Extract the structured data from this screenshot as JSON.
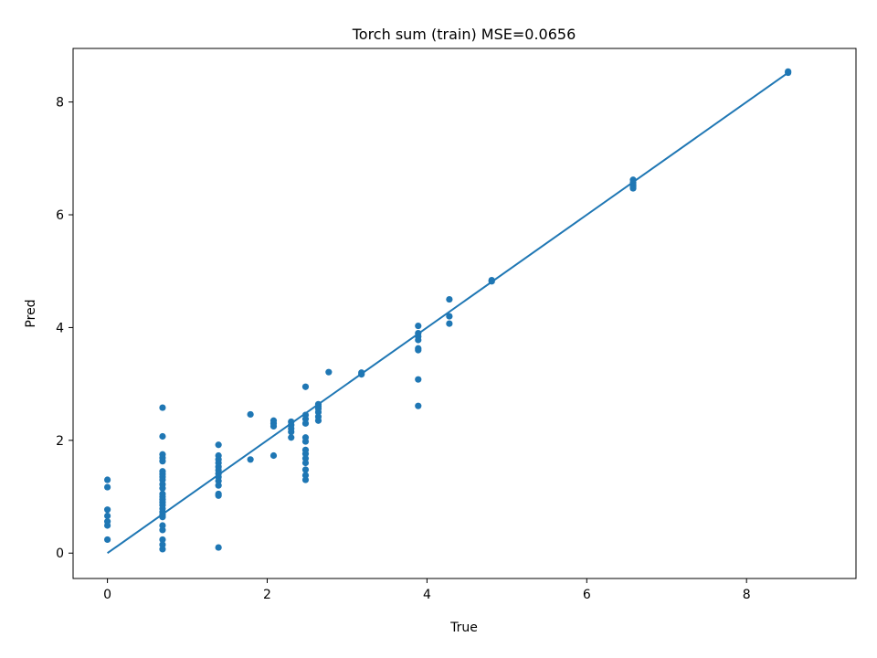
{
  "chart_data": {
    "type": "scatter",
    "title": "Torch sum (train) MSE=0.0656",
    "xlabel": "True",
    "ylabel": "Pred",
    "xlim": [
      -0.43,
      9.37
    ],
    "ylim": [
      -0.45,
      8.95
    ],
    "xticks": [
      0,
      2,
      4,
      6,
      8
    ],
    "yticks": [
      0,
      2,
      4,
      6,
      8
    ],
    "grid": false,
    "colors": {
      "series": "#1f77b4"
    },
    "series": [
      {
        "type": "scatter",
        "points": [
          [
            0,
            1.3
          ],
          [
            0,
            1.17
          ],
          [
            0,
            0.77
          ],
          [
            0,
            0.66
          ],
          [
            0,
            0.56
          ],
          [
            0,
            0.49
          ],
          [
            0,
            0.24
          ],
          [
            0.69,
            2.58
          ],
          [
            0.69,
            2.07
          ],
          [
            0.69,
            1.75
          ],
          [
            0.69,
            1.69
          ],
          [
            0.69,
            1.63
          ],
          [
            0.69,
            1.45
          ],
          [
            0.69,
            1.4
          ],
          [
            0.69,
            1.35
          ],
          [
            0.69,
            1.3
          ],
          [
            0.69,
            1.22
          ],
          [
            0.69,
            1.15
          ],
          [
            0.69,
            1.05
          ],
          [
            0.69,
            1.0
          ],
          [
            0.69,
            0.95
          ],
          [
            0.69,
            0.9
          ],
          [
            0.69,
            0.85
          ],
          [
            0.69,
            0.79
          ],
          [
            0.69,
            0.73
          ],
          [
            0.69,
            0.68
          ],
          [
            0.69,
            0.64
          ],
          [
            0.69,
            0.49
          ],
          [
            0.69,
            0.41
          ],
          [
            0.69,
            0.24
          ],
          [
            0.69,
            0.15
          ],
          [
            0.69,
            0.07
          ],
          [
            1.39,
            1.92
          ],
          [
            1.39,
            1.73
          ],
          [
            1.39,
            1.66
          ],
          [
            1.39,
            1.6
          ],
          [
            1.39,
            1.53
          ],
          [
            1.39,
            1.47
          ],
          [
            1.39,
            1.41
          ],
          [
            1.39,
            1.35
          ],
          [
            1.39,
            1.28
          ],
          [
            1.39,
            1.2
          ],
          [
            1.39,
            1.05
          ],
          [
            1.39,
            1.02
          ],
          [
            1.39,
            0.1
          ],
          [
            1.79,
            2.46
          ],
          [
            1.79,
            1.66
          ],
          [
            2.08,
            2.35
          ],
          [
            2.08,
            2.3
          ],
          [
            2.08,
            2.25
          ],
          [
            2.08,
            1.73
          ],
          [
            2.3,
            2.33
          ],
          [
            2.3,
            2.27
          ],
          [
            2.3,
            2.21
          ],
          [
            2.3,
            2.15
          ],
          [
            2.3,
            2.05
          ],
          [
            2.48,
            2.95
          ],
          [
            2.48,
            2.45
          ],
          [
            2.48,
            2.38
          ],
          [
            2.48,
            2.3
          ],
          [
            2.48,
            2.05
          ],
          [
            2.48,
            1.98
          ],
          [
            2.48,
            1.83
          ],
          [
            2.48,
            1.76
          ],
          [
            2.48,
            1.68
          ],
          [
            2.48,
            1.6
          ],
          [
            2.48,
            1.48
          ],
          [
            2.48,
            1.38
          ],
          [
            2.48,
            1.3
          ],
          [
            2.64,
            2.64
          ],
          [
            2.64,
            2.6
          ],
          [
            2.64,
            2.56
          ],
          [
            2.64,
            2.5
          ],
          [
            2.64,
            2.42
          ],
          [
            2.64,
            2.35
          ],
          [
            2.77,
            3.21
          ],
          [
            3.18,
            3.2
          ],
          [
            3.18,
            3.17
          ],
          [
            3.89,
            4.03
          ],
          [
            3.89,
            3.9
          ],
          [
            3.89,
            3.84
          ],
          [
            3.89,
            3.78
          ],
          [
            3.89,
            3.63
          ],
          [
            3.89,
            3.6
          ],
          [
            3.89,
            3.08
          ],
          [
            3.89,
            2.61
          ],
          [
            4.28,
            4.5
          ],
          [
            4.28,
            4.2
          ],
          [
            4.28,
            4.07
          ],
          [
            4.81,
            4.84
          ],
          [
            4.81,
            4.82
          ],
          [
            6.58,
            6.62
          ],
          [
            6.58,
            6.57
          ],
          [
            6.58,
            6.53
          ],
          [
            6.58,
            6.5
          ],
          [
            6.58,
            6.47
          ],
          [
            8.52,
            8.54
          ],
          [
            8.52,
            8.52
          ]
        ]
      },
      {
        "type": "line",
        "points": [
          [
            0,
            0
          ],
          [
            8.52,
            8.52
          ]
        ]
      }
    ]
  }
}
